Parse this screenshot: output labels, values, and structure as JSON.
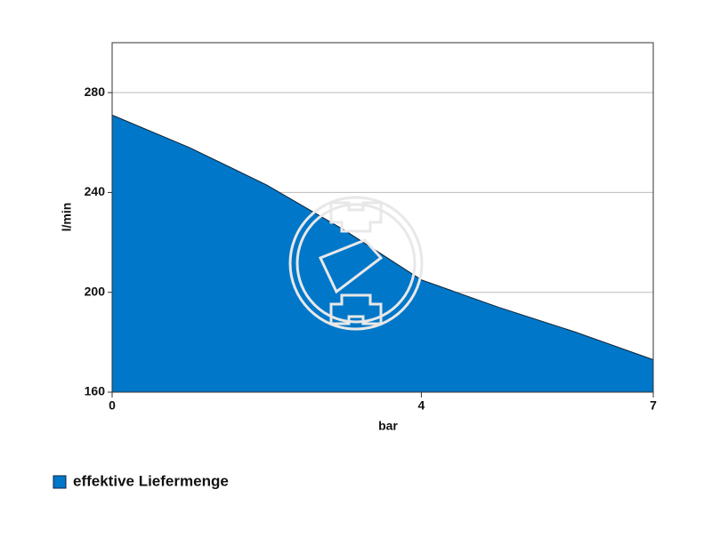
{
  "chart_data": {
    "type": "area",
    "x_label": "bar",
    "y_label": "l/min",
    "x": [
      0,
      1,
      2,
      3,
      4,
      5,
      6,
      7
    ],
    "series": [
      {
        "name": "effektive Liefermenge",
        "color": "#0077c8",
        "values": [
          271,
          258,
          243,
          225,
          205,
          194,
          184,
          173
        ]
      }
    ],
    "xlim": [
      0,
      7
    ],
    "xticks": [
      0,
      4,
      7
    ],
    "ylim": [
      160,
      300
    ],
    "yticks": [
      160,
      200,
      240,
      280
    ],
    "grid": true
  }
}
